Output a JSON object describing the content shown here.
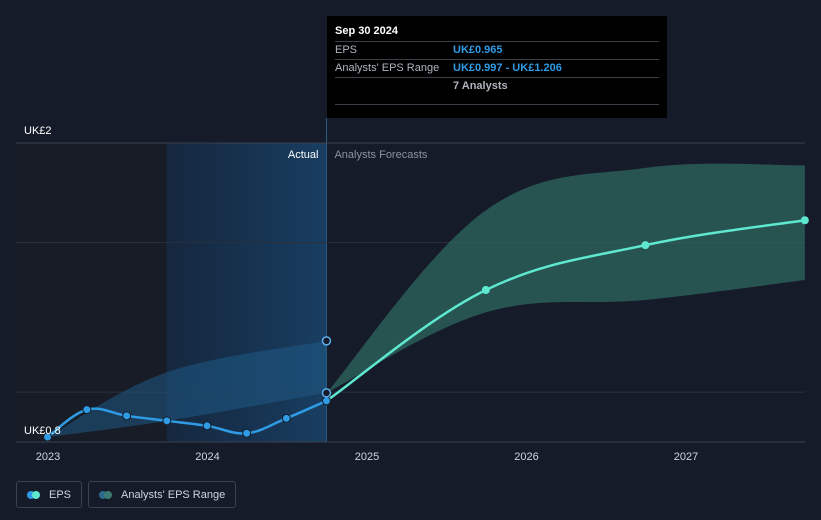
{
  "chart_data": {
    "type": "line",
    "title": "",
    "xlabel": "",
    "ylabel": "",
    "y_axis_labels": [
      "UK£2",
      "UK£0.8"
    ],
    "ylim": [
      0.8,
      2.0
    ],
    "x_ticks": [
      "2023",
      "2024",
      "2025",
      "2026",
      "2027"
    ],
    "region_labels": {
      "actual": "Actual",
      "forecast": "Analysts Forecasts"
    },
    "series": [
      {
        "name": "EPS",
        "color": "#2f9be5",
        "points": [
          {
            "x": "2022-12-31",
            "y": 0.82
          },
          {
            "x": "2023-03-31",
            "y": 0.93
          },
          {
            "x": "2023-06-30",
            "y": 0.905
          },
          {
            "x": "2023-09-30",
            "y": 0.885
          },
          {
            "x": "2023-12-31",
            "y": 0.865
          },
          {
            "x": "2024-03-31",
            "y": 0.835
          },
          {
            "x": "2024-06-30",
            "y": 0.895
          },
          {
            "x": "2024-09-30",
            "y": 0.965
          }
        ]
      },
      {
        "name": "EPS Forecast",
        "color": "#5ee8cf",
        "points": [
          {
            "x": "2024-09-30",
            "y": 0.965
          },
          {
            "x": "2025-09-30",
            "y": 1.41
          },
          {
            "x": "2026-09-30",
            "y": 1.59
          },
          {
            "x": "2027-09-30",
            "y": 1.69
          }
        ]
      }
    ],
    "range_band": {
      "name": "Analysts' EPS Range",
      "historical": [
        {
          "x": "2022-12-31",
          "low": 0.82,
          "high": 0.82
        },
        {
          "x": "2023-09-30",
          "low": 0.885,
          "high": 1.08
        },
        {
          "x": "2024-09-30",
          "low": 0.997,
          "high": 1.206
        }
      ],
      "forecast": [
        {
          "x": "2024-09-30",
          "low": 0.997,
          "high": 0.997
        },
        {
          "x": "2025-09-30",
          "low": 1.32,
          "high": 1.73
        },
        {
          "x": "2026-09-30",
          "low": 1.37,
          "high": 1.9
        },
        {
          "x": "2027-09-30",
          "low": 1.45,
          "high": 1.91
        }
      ]
    },
    "tooltip": {
      "date": "Sep 30 2024",
      "rows": [
        {
          "label": "EPS",
          "value": "UK£0.965"
        },
        {
          "label": "Analysts' EPS Range",
          "value": "UK£0.997 - UK£1.206"
        },
        {
          "label": "",
          "value": "7 Analysts"
        }
      ]
    },
    "legend": [
      {
        "label": "EPS",
        "color_a": "#2f9be5",
        "color_b": "#5ee8cf"
      },
      {
        "label": "Analysts' EPS Range",
        "color_a": "#2f6a8c",
        "color_b": "#3d7a72"
      }
    ],
    "colors": {
      "background": "#151b28",
      "actual_shade": "#17324d",
      "band_historical": "#1f5a85",
      "band_forecast": "#2f6b63",
      "forecast_line": "#5ee8cf",
      "eps_line": "#2f9be5"
    }
  }
}
